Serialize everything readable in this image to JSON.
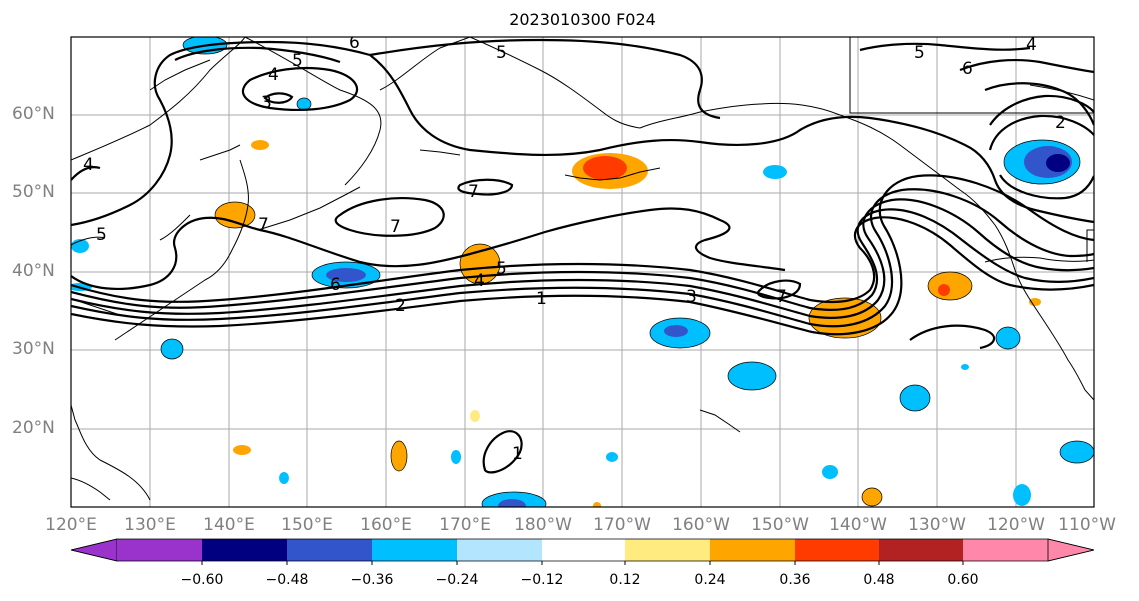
{
  "title": "2023010300 F024",
  "lat_labels": [
    "60°N",
    "50°N",
    "40°N",
    "30°N",
    "20°N"
  ],
  "lon_labels": [
    "120°E",
    "130°E",
    "140°E",
    "150°E",
    "160°E",
    "170°E",
    "180°W",
    "170°W",
    "160°W",
    "150°W",
    "140°W",
    "130°W",
    "120°W",
    "110°W"
  ],
  "colorbar": {
    "colors": [
      "#9933cc",
      "#000080",
      "#3355cc",
      "#00bfff",
      "#b3e5ff",
      "#ffffff",
      "#ffeb80",
      "#ffa500",
      "#ff3b00",
      "#b22222",
      "#ff88aa"
    ],
    "ticks": [
      "−0.60",
      "−0.48",
      "−0.36",
      "−0.24",
      "−0.12",
      "0.12",
      "0.24",
      "0.36",
      "0.48",
      "0.60"
    ]
  },
  "contour_labels": [
    "6",
    "5",
    "4",
    "3",
    "5",
    "6",
    "4",
    "5",
    "2",
    "4",
    "5",
    "7",
    "7",
    "7",
    "6",
    "2",
    "4",
    "5",
    "1",
    "3",
    "7",
    "1"
  ],
  "colors": {
    "grid": "#aaaaaa",
    "axis_text": "#808080",
    "contour": "#000000"
  }
}
